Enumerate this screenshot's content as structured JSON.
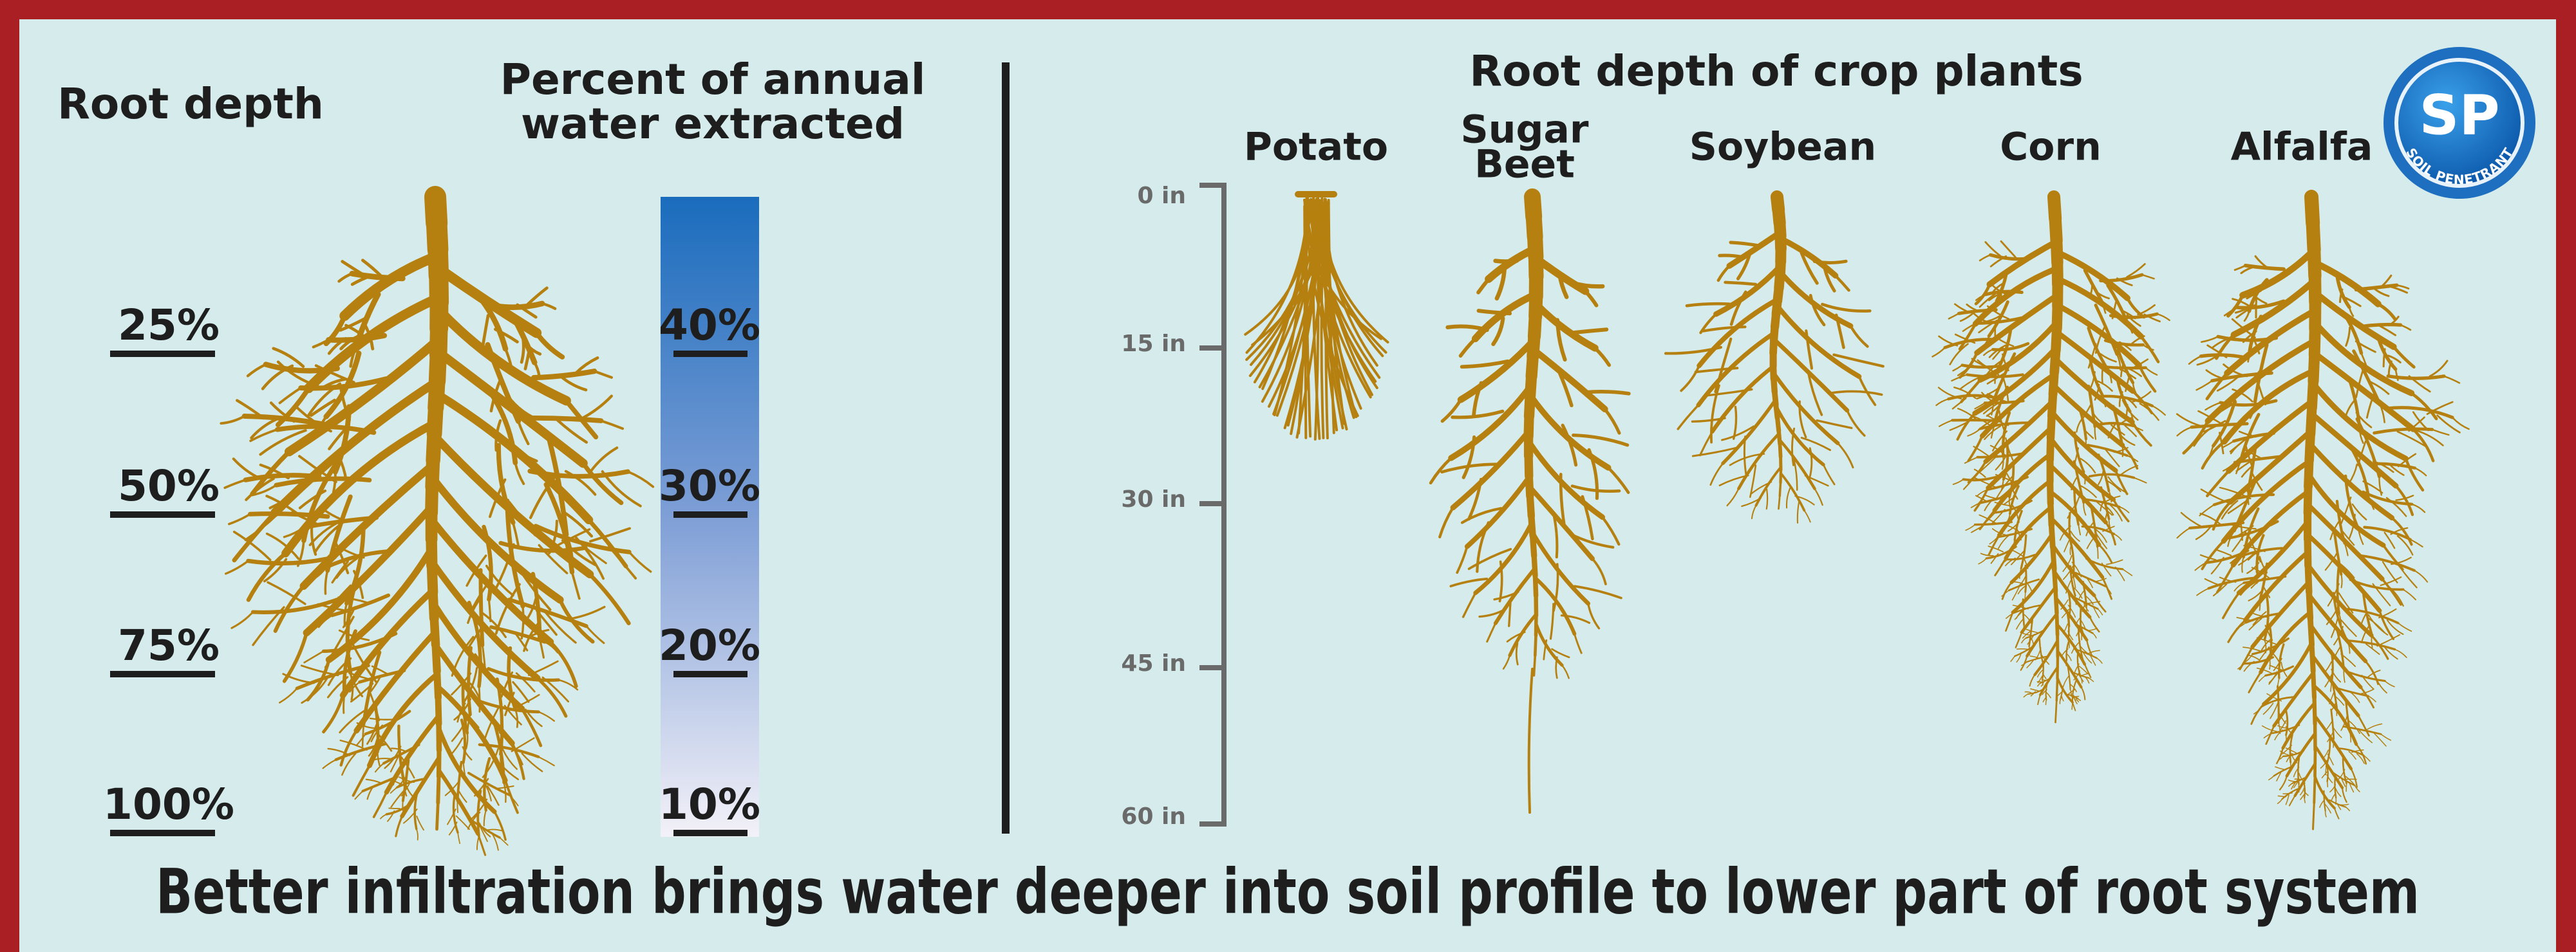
{
  "left_panel": {
    "root_depth_title": "Root depth",
    "water_title": [
      "Percent of annual",
      "water extracted"
    ],
    "root_depth_labels": [
      "25%",
      "50%",
      "75%",
      "100%"
    ],
    "water_labels": [
      "40%",
      "30%",
      "20%",
      "10%"
    ]
  },
  "right_panel": {
    "title": "Root depth of crop plants",
    "depth_labels": [
      "0 in",
      "15 in",
      "30 in",
      "45 in",
      "60 in"
    ],
    "crops": [
      [
        "Potato"
      ],
      [
        "Sugar",
        "Beet"
      ],
      [
        "Soybean"
      ],
      [
        "Corn"
      ],
      [
        "Alfalfa"
      ]
    ]
  },
  "logo": {
    "initials": "SP",
    "text": "SOIL PENETRANT"
  },
  "caption": "Better infiltration brings water deeper into soil profile to lower part of root system"
}
